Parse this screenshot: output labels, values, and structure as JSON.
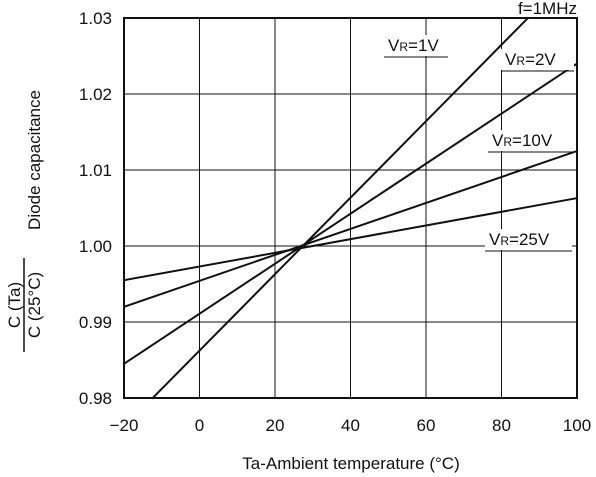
{
  "chart_data": {
    "type": "line",
    "annotation": "f=1MHz",
    "xlabel": "Ta-Ambient temperature (°C)",
    "ylabel": "Diode capacitance",
    "ylabel_fraction": {
      "numerator": "C (Ta)",
      "denominator": "C (25°C)"
    },
    "xlim": [
      -20,
      100
    ],
    "ylim": [
      0.98,
      1.03
    ],
    "x_ticks": [
      "−20",
      "0",
      "20",
      "40",
      "60",
      "80",
      "100"
    ],
    "x_tick_values": [
      -20,
      0,
      20,
      40,
      60,
      80,
      100
    ],
    "y_ticks": [
      "0.98",
      "0.99",
      "1.00",
      "1.01",
      "1.02",
      "1.03"
    ],
    "y_tick_values": [
      0.98,
      0.99,
      1.0,
      1.01,
      1.02,
      1.03
    ],
    "grid": true,
    "series": [
      {
        "name": "VR=1V",
        "label_main": "V",
        "label_sub": "R",
        "label_rest": "=1V",
        "points": [
          [
            -12.4,
            0.98
          ],
          [
            87,
            1.03
          ]
        ]
      },
      {
        "name": "VR=2V",
        "label_main": "V",
        "label_sub": "R",
        "label_rest": "=2V",
        "points": [
          [
            -20,
            0.9845
          ],
          [
            100,
            1.024
          ]
        ]
      },
      {
        "name": "VR=10V",
        "label_main": "V",
        "label_sub": "R",
        "label_rest": "=10V",
        "points": [
          [
            -20,
            0.992
          ],
          [
            100,
            1.0125
          ]
        ]
      },
      {
        "name": "VR=25V",
        "label_main": "V",
        "label_sub": "R",
        "label_rest": "=25V",
        "points": [
          [
            -20,
            0.9955
          ],
          [
            100,
            1.0063
          ]
        ]
      }
    ]
  }
}
